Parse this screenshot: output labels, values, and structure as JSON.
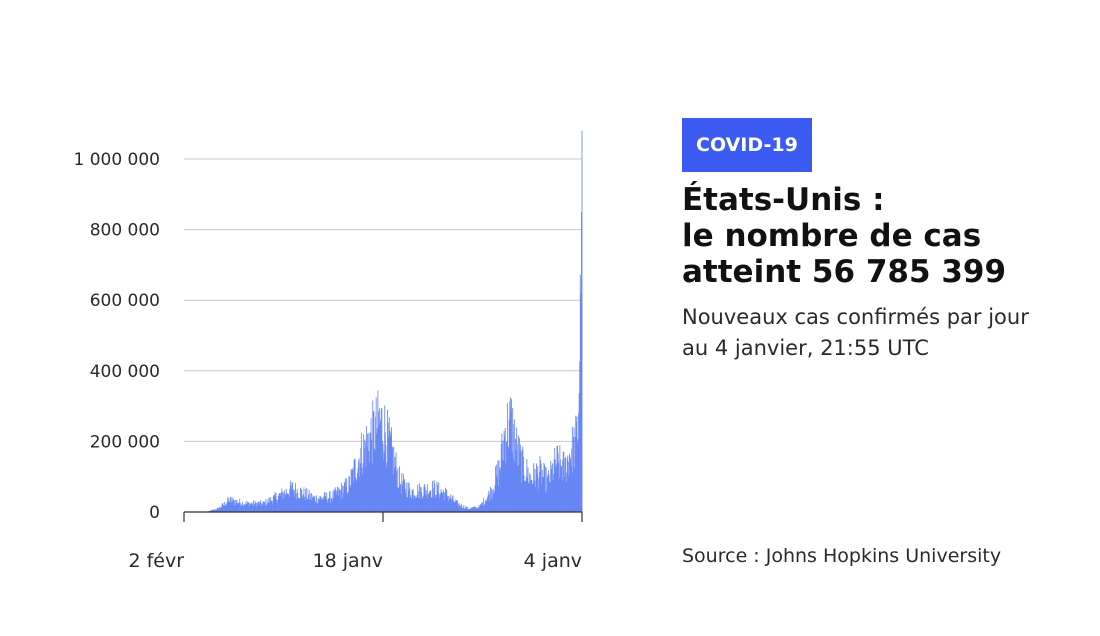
{
  "colors": {
    "accent": "#3b5bf2",
    "bars": "#5b7cf5",
    "grid": "#c4c8d2",
    "axis": "#333333"
  },
  "panel": {
    "badge": "COVID-19",
    "title_lines": [
      "États-Unis :",
      "le nombre de cas",
      "atteint 56 785 399"
    ],
    "subtitle_lines": [
      "Nouveaux cas confirmés par jour",
      "au 4 janvier, 21:55 UTC"
    ],
    "source": "Source : Johns Hopkins University"
  },
  "chart_data": {
    "type": "bar",
    "grid": true,
    "ylim": [
      0,
      1000000
    ],
    "yticks": [
      {
        "value": 0,
        "label": "0"
      },
      {
        "value": 200000,
        "label": "200 000"
      },
      {
        "value": 400000,
        "label": "400 000"
      },
      {
        "value": 600000,
        "label": "600 000"
      },
      {
        "value": 800000,
        "label": "800 000"
      },
      {
        "value": 1000000,
        "label": "1 000 000"
      }
    ],
    "xticks": [
      {
        "index": 0,
        "label": "2 févr"
      },
      {
        "index": 350,
        "label": "18 janv"
      },
      {
        "index": 700,
        "label": "4 janv"
      }
    ],
    "trend_points": [
      [
        0,
        0
      ],
      [
        40,
        500
      ],
      [
        60,
        10000
      ],
      [
        80,
        35000
      ],
      [
        110,
        25000
      ],
      [
        140,
        25000
      ],
      [
        170,
        50000
      ],
      [
        190,
        70000
      ],
      [
        210,
        55000
      ],
      [
        230,
        40000
      ],
      [
        260,
        45000
      ],
      [
        290,
        80000
      ],
      [
        310,
        170000
      ],
      [
        330,
        230000
      ],
      [
        345,
        270000
      ],
      [
        352,
        250000
      ],
      [
        365,
        180000
      ],
      [
        380,
        90000
      ],
      [
        400,
        60000
      ],
      [
        420,
        65000
      ],
      [
        440,
        70000
      ],
      [
        460,
        55000
      ],
      [
        480,
        25000
      ],
      [
        500,
        10000
      ],
      [
        520,
        15000
      ],
      [
        540,
        60000
      ],
      [
        555,
        130000
      ],
      [
        565,
        240000
      ],
      [
        575,
        270000
      ],
      [
        585,
        190000
      ],
      [
        595,
        140000
      ],
      [
        610,
        100000
      ],
      [
        625,
        120000
      ],
      [
        640,
        90000
      ],
      [
        655,
        150000
      ],
      [
        670,
        130000
      ],
      [
        680,
        180000
      ],
      [
        688,
        200000
      ],
      [
        693,
        250000
      ],
      [
        696,
        480000
      ],
      [
        698,
        620000
      ],
      [
        700,
        1080000
      ]
    ],
    "bar_count": 701
  }
}
